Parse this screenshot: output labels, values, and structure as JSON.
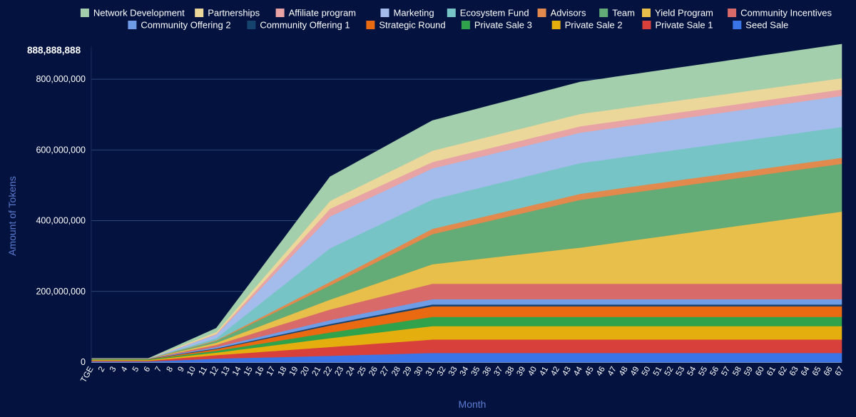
{
  "chart_data": {
    "type": "area",
    "stacked": true,
    "xlabel": "Month",
    "ylabel": "Amount of Tokens",
    "max_label": "888,888,888",
    "ylim": [
      0,
      888888888
    ],
    "y_ticks": [
      "0",
      "200,000,000",
      "400,000,000",
      "600,000,000",
      "800,000,000"
    ],
    "y_tick_values": [
      0,
      200000000,
      400000000,
      600000000,
      800000000
    ],
    "grid": true,
    "legend_position": "top",
    "x": [
      "TGE",
      "2",
      "3",
      "4",
      "5",
      "6",
      "7",
      "8",
      "9",
      "10",
      "11",
      "12",
      "13",
      "14",
      "15",
      "16",
      "17",
      "18",
      "19",
      "20",
      "21",
      "22",
      "23",
      "24",
      "25",
      "26",
      "27",
      "28",
      "29",
      "30",
      "31",
      "32",
      "33",
      "34",
      "35",
      "36",
      "37",
      "38",
      "39",
      "40",
      "41",
      "42",
      "43",
      "44",
      "45",
      "46",
      "47",
      "48",
      "49",
      "50",
      "51",
      "52",
      "53",
      "54",
      "55",
      "56",
      "57",
      "58",
      "59",
      "60",
      "61",
      "62",
      "63",
      "64",
      "65",
      "66",
      "67"
    ],
    "legend_rows": [
      [
        "Network Development",
        "Partnerships",
        "Affiliate program",
        "Marketing",
        "Ecosystem Fund",
        "Advisors",
        "Team",
        "Yield Program",
        "Community Incentives"
      ],
      [
        "Community Offering 2",
        "Community Offering 1",
        "Strategic Round",
        "Private Sale 3",
        "Private Sale 2",
        "Private Sale 1",
        "Seed Sale"
      ]
    ],
    "series": [
      {
        "name": "Seed Sale",
        "color": "#3b74e6",
        "keys": [
          [
            1,
            2000000
          ],
          [
            6,
            2000000
          ],
          [
            12,
            10000000
          ],
          [
            22,
            18000000
          ],
          [
            31,
            26000000
          ],
          [
            67,
            26000000
          ]
        ]
      },
      {
        "name": "Private Sale 1",
        "color": "#d8413b",
        "keys": [
          [
            1,
            2000000
          ],
          [
            6,
            2000000
          ],
          [
            12,
            10000000
          ],
          [
            22,
            25000000
          ],
          [
            31,
            38000000
          ],
          [
            67,
            38000000
          ]
        ]
      },
      {
        "name": "Private Sale 2",
        "color": "#e5ae0f",
        "keys": [
          [
            1,
            2000000
          ],
          [
            6,
            2000000
          ],
          [
            12,
            7000000
          ],
          [
            22,
            25000000
          ],
          [
            31,
            38000000
          ],
          [
            67,
            38000000
          ]
        ]
      },
      {
        "name": "Private Sale 3",
        "color": "#2fa24b",
        "keys": [
          [
            1,
            2000000
          ],
          [
            6,
            2000000
          ],
          [
            12,
            5000000
          ],
          [
            22,
            16000000
          ],
          [
            31,
            26000000
          ],
          [
            67,
            26000000
          ]
        ]
      },
      {
        "name": "Strategic Round",
        "color": "#ea6a12",
        "keys": [
          [
            1,
            1000000
          ],
          [
            6,
            1000000
          ],
          [
            12,
            5000000
          ],
          [
            22,
            20000000
          ],
          [
            31,
            30000000
          ],
          [
            67,
            30000000
          ]
        ]
      },
      {
        "name": "Community Offering 1",
        "color": "#16426e",
        "keys": [
          [
            1,
            500000
          ],
          [
            6,
            500000
          ],
          [
            12,
            2000000
          ],
          [
            22,
            4000000
          ],
          [
            31,
            5000000
          ],
          [
            67,
            5000000
          ]
        ]
      },
      {
        "name": "Community Offering 2",
        "color": "#6f9ce6",
        "keys": [
          [
            1,
            500000
          ],
          [
            6,
            500000
          ],
          [
            12,
            4000000
          ],
          [
            22,
            11000000
          ],
          [
            31,
            15000000
          ],
          [
            67,
            15000000
          ]
        ]
      },
      {
        "name": "Community Incentives",
        "color": "#d96a6a",
        "keys": [
          [
            1,
            0
          ],
          [
            6,
            0
          ],
          [
            12,
            6000000
          ],
          [
            22,
            30000000
          ],
          [
            31,
            44000000
          ],
          [
            67,
            44000000
          ]
        ]
      },
      {
        "name": "Yield Program",
        "color": "#e7bf4a",
        "keys": [
          [
            1,
            0
          ],
          [
            6,
            0
          ],
          [
            12,
            6000000
          ],
          [
            22,
            28000000
          ],
          [
            31,
            55000000
          ],
          [
            44,
            102000000
          ],
          [
            67,
            204000000
          ]
        ]
      },
      {
        "name": "Team",
        "color": "#63ab77",
        "keys": [
          [
            1,
            0
          ],
          [
            6,
            0
          ],
          [
            12,
            5000000
          ],
          [
            22,
            40000000
          ],
          [
            31,
            85000000
          ],
          [
            44,
            135000000
          ],
          [
            67,
            135000000
          ]
        ]
      },
      {
        "name": "Advisors",
        "color": "#e2894d",
        "keys": [
          [
            1,
            0
          ],
          [
            6,
            0
          ],
          [
            12,
            2000000
          ],
          [
            22,
            10000000
          ],
          [
            31,
            15000000
          ],
          [
            44,
            17000000
          ],
          [
            67,
            17000000
          ]
        ]
      },
      {
        "name": "Ecosystem Fund",
        "color": "#77c4c6",
        "keys": [
          [
            1,
            0
          ],
          [
            6,
            0
          ],
          [
            12,
            6000000
          ],
          [
            22,
            95000000
          ],
          [
            31,
            83000000
          ],
          [
            44,
            87000000
          ],
          [
            67,
            87000000
          ]
        ]
      },
      {
        "name": "Marketing",
        "color": "#a4bcec",
        "keys": [
          [
            1,
            0
          ],
          [
            6,
            0
          ],
          [
            12,
            10000000
          ],
          [
            22,
            90000000
          ],
          [
            31,
            88000000
          ],
          [
            44,
            86000000
          ],
          [
            67,
            88000000
          ]
        ]
      },
      {
        "name": "Affiliate program",
        "color": "#e8a3a4",
        "keys": [
          [
            1,
            0
          ],
          [
            6,
            0
          ],
          [
            12,
            2000000
          ],
          [
            22,
            22000000
          ],
          [
            31,
            18000000
          ],
          [
            44,
            18000000
          ],
          [
            67,
            18000000
          ]
        ]
      },
      {
        "name": "Partnerships",
        "color": "#ecd79a",
        "keys": [
          [
            1,
            0
          ],
          [
            6,
            0
          ],
          [
            12,
            5000000
          ],
          [
            22,
            22000000
          ],
          [
            31,
            32000000
          ],
          [
            44,
            35000000
          ],
          [
            67,
            32000000
          ]
        ]
      },
      {
        "name": "Network Development",
        "color": "#a4cfad",
        "keys": [
          [
            1,
            0
          ],
          [
            6,
            0
          ],
          [
            12,
            11000000
          ],
          [
            22,
            68000000
          ],
          [
            31,
            85000000
          ],
          [
            44,
            90000000
          ],
          [
            67,
            96000000
          ]
        ]
      }
    ]
  }
}
